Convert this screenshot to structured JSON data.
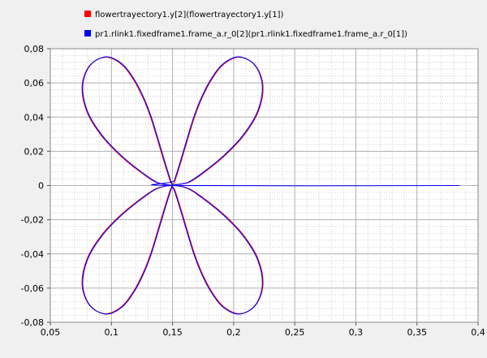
{
  "chart_data": {
    "type": "line",
    "title": "",
    "xlabel": "",
    "ylabel": "",
    "xlim": [
      0.05,
      0.4
    ],
    "ylim": [
      -0.08,
      0.08
    ],
    "grid": true,
    "legend_position": "top-left",
    "x_ticks": [
      {
        "value": 0.05,
        "label": "0,05"
      },
      {
        "value": 0.1,
        "label": "0,1"
      },
      {
        "value": 0.15,
        "label": "0,15"
      },
      {
        "value": 0.2,
        "label": "0,2"
      },
      {
        "value": 0.25,
        "label": "0,25"
      },
      {
        "value": 0.3,
        "label": "0,3"
      },
      {
        "value": 0.35,
        "label": "0,35"
      },
      {
        "value": 0.4,
        "label": "0,4"
      }
    ],
    "y_ticks": [
      {
        "value": 0.08,
        "label": "0,08"
      },
      {
        "value": 0.06,
        "label": "0,06"
      },
      {
        "value": 0.04,
        "label": "0,04"
      },
      {
        "value": 0.02,
        "label": "0,02"
      },
      {
        "value": 0,
        "label": "0"
      },
      {
        "value": -0.02,
        "label": "-0,02"
      },
      {
        "value": -0.04,
        "label": "-0,04"
      },
      {
        "value": -0.06,
        "label": "-0,06"
      },
      {
        "value": -0.08,
        "label": "-0,08"
      }
    ],
    "series": [
      {
        "name": "flowertrayectory1.y[2](flowertrayectory1.y[1])",
        "color": "#ff0000",
        "points": [
          [
            0.15,
            0.0
          ],
          [
            0.152,
            0.0028
          ],
          [
            0.157,
            0.0141
          ],
          [
            0.163,
            0.0285
          ],
          [
            0.168,
            0.04
          ],
          [
            0.174,
            0.051
          ],
          [
            0.182,
            0.062
          ],
          [
            0.192,
            0.071
          ],
          [
            0.205,
            0.075
          ],
          [
            0.218,
            0.07
          ],
          [
            0.224,
            0.058
          ],
          [
            0.22,
            0.043
          ],
          [
            0.208,
            0.029
          ],
          [
            0.192,
            0.017
          ],
          [
            0.175,
            0.0072
          ],
          [
            0.163,
            0.0017
          ],
          [
            0.15,
            0.0
          ],
          [
            0.152,
            -0.0028
          ],
          [
            0.157,
            -0.0141
          ],
          [
            0.163,
            -0.0285
          ],
          [
            0.168,
            -0.04
          ],
          [
            0.174,
            -0.051
          ],
          [
            0.182,
            -0.062
          ],
          [
            0.192,
            -0.071
          ],
          [
            0.205,
            -0.075
          ],
          [
            0.218,
            -0.07
          ],
          [
            0.224,
            -0.058
          ],
          [
            0.22,
            -0.043
          ],
          [
            0.208,
            -0.029
          ],
          [
            0.192,
            -0.017
          ],
          [
            0.175,
            -0.0072
          ],
          [
            0.163,
            -0.0017
          ],
          [
            0.15,
            0.0
          ],
          [
            0.137,
            -0.0017
          ],
          [
            0.125,
            -0.0072
          ],
          [
            0.108,
            -0.017
          ],
          [
            0.092,
            -0.029
          ],
          [
            0.08,
            -0.043
          ],
          [
            0.076,
            -0.058
          ],
          [
            0.082,
            -0.07
          ],
          [
            0.095,
            -0.075
          ],
          [
            0.108,
            -0.071
          ],
          [
            0.118,
            -0.062
          ],
          [
            0.126,
            -0.051
          ],
          [
            0.132,
            -0.04
          ],
          [
            0.137,
            -0.0285
          ],
          [
            0.143,
            -0.0141
          ],
          [
            0.148,
            -0.0028
          ],
          [
            0.15,
            0.0
          ],
          [
            0.148,
            0.0028
          ],
          [
            0.143,
            0.0141
          ],
          [
            0.137,
            0.0285
          ],
          [
            0.132,
            0.04
          ],
          [
            0.126,
            0.051
          ],
          [
            0.118,
            0.062
          ],
          [
            0.108,
            0.071
          ],
          [
            0.095,
            0.075
          ],
          [
            0.082,
            0.07
          ],
          [
            0.076,
            0.058
          ],
          [
            0.08,
            0.043
          ],
          [
            0.092,
            0.029
          ],
          [
            0.108,
            0.017
          ],
          [
            0.125,
            0.0072
          ],
          [
            0.137,
            0.0017
          ],
          [
            0.15,
            0.0
          ]
        ]
      },
      {
        "name": "pr1.rlink1.fixedframe1.frame_a.r_0[2](pr1.rlink1.fixedframe1.frame_a.r_0[1])",
        "color": "#0000ff",
        "points": [
          [
            0.385,
            0.0
          ],
          [
            0.15,
            0.0
          ],
          [
            0.1515,
            0.0029
          ],
          [
            0.1565,
            0.0143
          ],
          [
            0.1625,
            0.0287
          ],
          [
            0.1675,
            0.0402
          ],
          [
            0.1735,
            0.0512
          ],
          [
            0.1815,
            0.0622
          ],
          [
            0.1915,
            0.0712
          ],
          [
            0.2045,
            0.0752
          ],
          [
            0.2175,
            0.0702
          ],
          [
            0.2235,
            0.0582
          ],
          [
            0.2195,
            0.0432
          ],
          [
            0.2075,
            0.0292
          ],
          [
            0.1915,
            0.0172
          ],
          [
            0.1745,
            0.0074
          ],
          [
            0.1625,
            0.0018
          ],
          [
            0.15,
            0.0
          ],
          [
            0.1515,
            -0.0029
          ],
          [
            0.1565,
            -0.0143
          ],
          [
            0.1625,
            -0.0287
          ],
          [
            0.1675,
            -0.0402
          ],
          [
            0.1735,
            -0.0512
          ],
          [
            0.1815,
            -0.0622
          ],
          [
            0.1915,
            -0.0712
          ],
          [
            0.2045,
            -0.0752
          ],
          [
            0.2175,
            -0.0702
          ],
          [
            0.2235,
            -0.0582
          ],
          [
            0.2195,
            -0.0432
          ],
          [
            0.2075,
            -0.0292
          ],
          [
            0.1915,
            -0.0172
          ],
          [
            0.1745,
            -0.0074
          ],
          [
            0.1625,
            -0.0018
          ],
          [
            0.15,
            0.0
          ],
          [
            0.1375,
            -0.0018
          ],
          [
            0.1255,
            -0.0074
          ],
          [
            0.1085,
            -0.0172
          ],
          [
            0.0925,
            -0.0292
          ],
          [
            0.0805,
            -0.0432
          ],
          [
            0.0765,
            -0.0582
          ],
          [
            0.0825,
            -0.0702
          ],
          [
            0.0955,
            -0.0752
          ],
          [
            0.1085,
            -0.0712
          ],
          [
            0.1185,
            -0.0622
          ],
          [
            0.1265,
            -0.0512
          ],
          [
            0.1325,
            -0.0402
          ],
          [
            0.1375,
            -0.0287
          ],
          [
            0.1435,
            -0.0143
          ],
          [
            0.1485,
            -0.0029
          ],
          [
            0.15,
            0.0
          ],
          [
            0.1485,
            0.0029
          ],
          [
            0.1435,
            0.0143
          ],
          [
            0.1375,
            0.0287
          ],
          [
            0.1325,
            0.0402
          ],
          [
            0.1265,
            0.0512
          ],
          [
            0.1185,
            0.0622
          ],
          [
            0.1085,
            0.0712
          ],
          [
            0.0955,
            0.0752
          ],
          [
            0.0825,
            0.0702
          ],
          [
            0.0765,
            0.0582
          ],
          [
            0.0805,
            0.0432
          ],
          [
            0.0925,
            0.0292
          ],
          [
            0.1085,
            0.0172
          ],
          [
            0.1255,
            0.0074
          ],
          [
            0.1375,
            0.0018
          ],
          [
            0.15,
            0.0
          ]
        ]
      }
    ]
  }
}
